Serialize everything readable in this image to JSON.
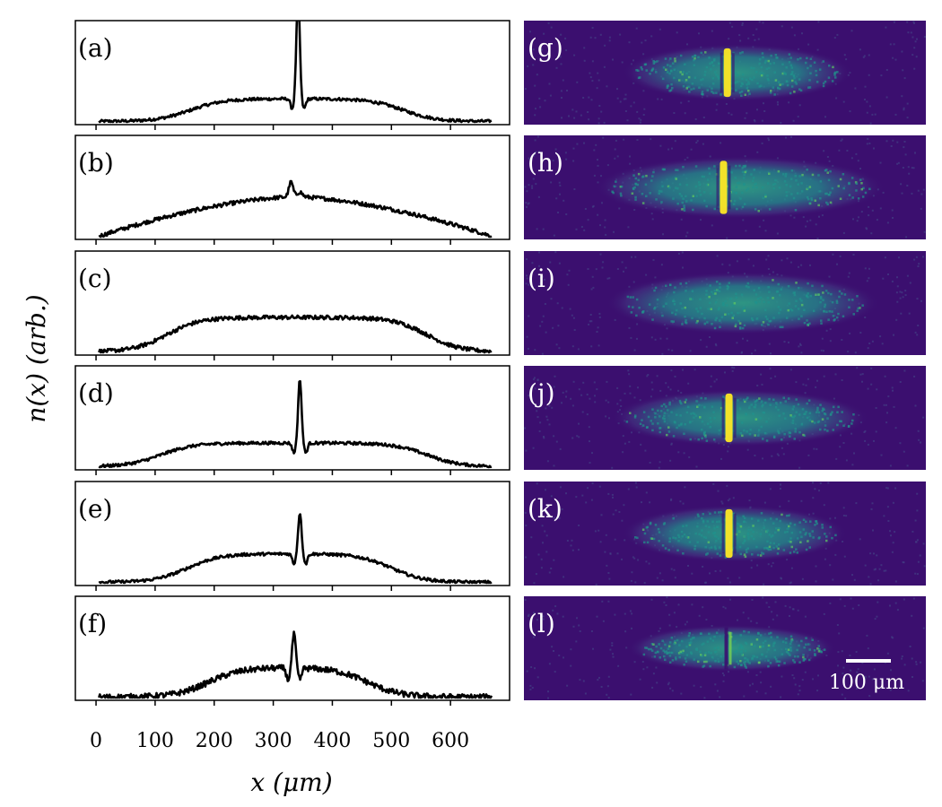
{
  "colors": {
    "line": "#000000",
    "image_bg": "#3b0f6f",
    "image_low": "#433e85",
    "image_mid": "#21918c",
    "image_high": "#fde725",
    "image_label": "#ffffff"
  },
  "scale_bar": {
    "label": "100 μm",
    "length_um": 100
  },
  "chart_data": {
    "type": "line",
    "xlabel": "x (μm)",
    "ylabel": "n(x) (arb.)",
    "xlim": [
      -35,
      700
    ],
    "xticks": [
      0,
      100,
      200,
      300,
      400,
      500,
      600
    ],
    "xtick_labels": [
      "0",
      "100",
      "200",
      "300",
      "400",
      "500",
      "600"
    ],
    "ylim": [
      0,
      1.0
    ],
    "cloud_extent_um": [
      5,
      670
    ],
    "grid": false,
    "legend": "none",
    "profile_panels": [
      {
        "label": "(a)",
        "edge_left": 100,
        "edge_right": 580,
        "plateau": 0.23,
        "ripple": 0.015,
        "features": [
          {
            "x": 342,
            "amp": 1.05,
            "width": 4
          },
          {
            "x": 332,
            "amp": -0.1,
            "width": 4
          },
          {
            "x": 352,
            "amp": -0.1,
            "width": 4
          }
        ]
      },
      {
        "label": "(b)",
        "edge_left": 5,
        "edge_right": 670,
        "plateau": 0.4,
        "ripple": 0.02,
        "profile": "triangular",
        "features": [
          {
            "x": 330,
            "amp": 0.15,
            "width": 5
          },
          {
            "x": 345,
            "amp": 0.05,
            "width": 6
          }
        ]
      },
      {
        "label": "(c)",
        "edge_left": 60,
        "edge_right": 620,
        "plateau": 0.35,
        "ripple": 0.02,
        "features": []
      },
      {
        "label": "(d)",
        "edge_left": 50,
        "edge_right": 620,
        "plateau": 0.24,
        "ripple": 0.015,
        "features": [
          {
            "x": 345,
            "amp": 0.65,
            "width": 4
          },
          {
            "x": 335,
            "amp": -0.1,
            "width": 4
          },
          {
            "x": 355,
            "amp": -0.1,
            "width": 4
          }
        ]
      },
      {
        "label": "(e)",
        "edge_left": 95,
        "edge_right": 560,
        "plateau": 0.29,
        "ripple": 0.015,
        "features": [
          {
            "x": 345,
            "amp": 0.42,
            "width": 4
          },
          {
            "x": 335,
            "amp": -0.1,
            "width": 4
          },
          {
            "x": 355,
            "amp": -0.1,
            "width": 4
          }
        ]
      },
      {
        "label": "(f)",
        "edge_left": 130,
        "edge_right": 520,
        "plateau": 0.3,
        "ripple": 0.03,
        "features": [
          {
            "x": 335,
            "amp": 0.35,
            "width": 4
          },
          {
            "x": 325,
            "amp": -0.12,
            "width": 4
          },
          {
            "x": 345,
            "amp": -0.12,
            "width": 4
          }
        ]
      }
    ],
    "image_panels": [
      {
        "label": "(g)",
        "extent": [
          150,
          570
        ],
        "brightness": 0.55,
        "height": 0.55,
        "stripe_x": 342,
        "stripe": "bright"
      },
      {
        "label": "(h)",
        "extent": [
          100,
          630
        ],
        "brightness": 0.7,
        "height": 0.6,
        "stripe_x": 335,
        "stripe": "bright"
      },
      {
        "label": "(i)",
        "extent": [
          120,
          620
        ],
        "brightness": 0.65,
        "height": 0.6,
        "stripe_x": null,
        "stripe": "none"
      },
      {
        "label": "(j)",
        "extent": [
          130,
          600
        ],
        "brightness": 0.55,
        "height": 0.55,
        "stripe_x": 345,
        "stripe": "bright"
      },
      {
        "label": "(k)",
        "extent": [
          150,
          560
        ],
        "brightness": 0.55,
        "height": 0.55,
        "stripe_x": 345,
        "stripe": "bright"
      },
      {
        "label": "(l)",
        "extent": [
          160,
          540
        ],
        "brightness": 0.65,
        "height": 0.45,
        "stripe_x": 340,
        "stripe": "dark"
      }
    ]
  }
}
